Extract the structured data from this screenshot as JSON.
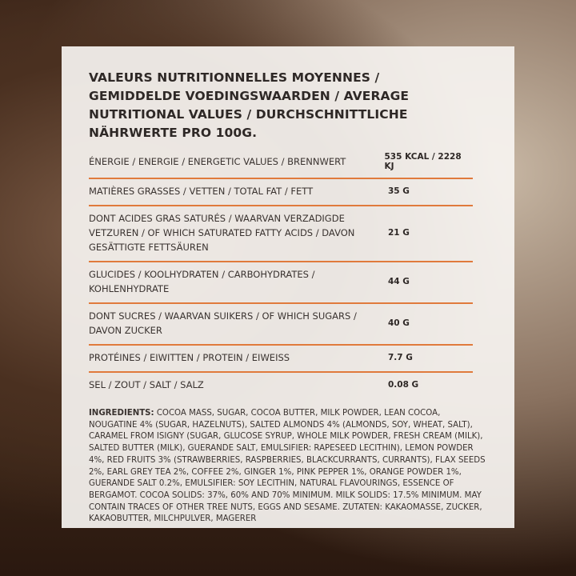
{
  "title": "VALEURS NUTRITIONNELLES MOYENNES / GEMIDDELDE VOEDINGSWAARDEN / AVERAGE NUTRITIONAL VALUES / DURCHSCHNITTLICHE NÄHRWERTE PRO 100G.",
  "rows": [
    {
      "label": "ÉNERGIE / ENERGIE / ENERGETIC VALUES / BRENNWERT",
      "value": "535 KCAL / 2228 KJ"
    },
    {
      "label": "MATIÈRES GRASSES / VETTEN / TOTAL FAT / FETT",
      "value": "35 G"
    },
    {
      "label": "DONT ACIDES GRAS SATURÉS / WAARVAN VERZADIGDE VETZUREN / OF WHICH SATURATED FATTY ACIDS / DAVON GESÄTTIGTE FETTSÄUREN",
      "value": "21 G"
    },
    {
      "label": "GLUCIDES / KOOLHYDRATEN / CARBOHYDRATES / KOHLENHYDRATE",
      "value": "44 G"
    },
    {
      "label": "DONT SUCRES / WAARVAN SUIKERS / OF WHICH SUGARS / DAVON ZUCKER",
      "value": "40 G"
    },
    {
      "label": "PROTÉINES / EIWITTEN / PROTEIN / EIWEISS",
      "value": "7.7 G"
    },
    {
      "label": "SEL / ZOUT / SALT / SALZ",
      "value": "0.08 G"
    }
  ],
  "ingredients": {
    "label": "INGREDIENTS:",
    "text": " COCOA MASS, SUGAR, COCOA BUTTER, MILK POWDER, LEAN COCOA, NOUGATINE 4% (SUGAR, HAZELNUTS), SALTED ALMONDS 4% (ALMONDS, SOY, WHEAT, SALT), CARAMEL FROM ISIGNY (SUGAR, GLUCOSE SYRUP, WHOLE MILK POWDER, FRESH CREAM (MILK), SALTED BUTTER (MILK), GUERANDE SALT, EMULSIFIER: RAPESEED LECITHIN), LEMON POWDER 4%, RED FRUITS 3% (STRAWBERRIES, RASPBERRIES, BLACKCURRANTS, CURRANTS), FLAX SEEDS 2%, EARL GREY TEA 2%, COFFEE 2%, GINGER 1%, PINK PEPPER 1%, ORANGE POWDER 1%, GUERANDE SALT 0.2%, EMULSIFIER: SOY LECITHIN, NATURAL FLAVOURINGS, ESSENCE OF BERGAMOT. COCOA SOLIDS: 37%, 60% AND 70% MINIMUM. MILK SOLIDS: 17.5% MINIMUM. MAY CONTAIN TRACES OF OTHER TREE NUTS, EGGS AND SESAME. ZUTATEN: KAKAOMASSE, ZUCKER, KAKAOBUTTER, MILCHPULVER, MAGERER"
  },
  "colors": {
    "divider": "#e07a3c"
  }
}
